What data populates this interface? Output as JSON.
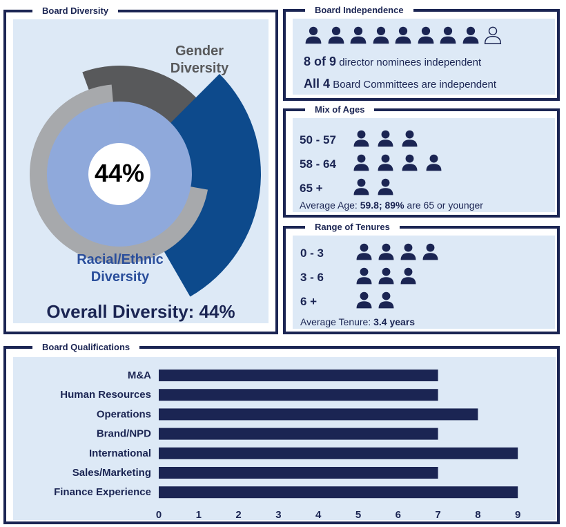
{
  "diversity": {
    "title": "Board Diversity",
    "center_value": "44%",
    "gender_label_line1": "Gender",
    "gender_label_line2": "Diversity",
    "racial_label_line1": "Racial/Ethnic",
    "racial_label_line2": "Diversity",
    "overall_label": "Overall Diversity: 44%",
    "colors": {
      "gender": "#58595b",
      "racial": "#0d4a8c",
      "ring_outer": "#a7a9ac",
      "ring_inner": "#8fa9db",
      "center": "#ffffff"
    }
  },
  "independence": {
    "title": "Board Independence",
    "filled_icons": 8,
    "total_icons": 9,
    "line1_bold": "8 of 9",
    "line1_text": "director nominees independent",
    "line2_bold": "All 4",
    "line2_text": "Board Committees are independent"
  },
  "ages": {
    "title": "Mix of Ages",
    "rows": [
      {
        "label": "50 - 57",
        "count": 3
      },
      {
        "label": "58 - 64",
        "count": 4
      },
      {
        "label": "65 +",
        "count": 2
      }
    ],
    "avg_prefix": "Average Age: ",
    "avg_value": "59.8; 89%",
    "avg_suffix": " are 65 or younger"
  },
  "tenures": {
    "title": "Range of Tenures",
    "rows": [
      {
        "label": "0 - 3",
        "count": 4
      },
      {
        "label": "3 - 6",
        "count": 3
      },
      {
        "label": "6 +",
        "count": 2
      }
    ],
    "avg_prefix": "Average Tenure: ",
    "avg_value": "3.4 years"
  },
  "qualifications": {
    "title": "Board Qualifications",
    "bar_color": "#1b2553"
  },
  "chart_data": {
    "type": "bar",
    "orientation": "horizontal",
    "categories": [
      "M&A",
      "Human Resources",
      "Operations",
      "Brand/NPD",
      "International",
      "Sales/Marketing",
      "Finance Experience"
    ],
    "values": [
      7,
      7,
      8,
      7,
      9,
      7,
      9
    ],
    "xlim": [
      0,
      9
    ],
    "xticks": [
      "0",
      "1",
      "2",
      "3",
      "4",
      "5",
      "6",
      "7",
      "8",
      "9"
    ],
    "grid": false
  }
}
